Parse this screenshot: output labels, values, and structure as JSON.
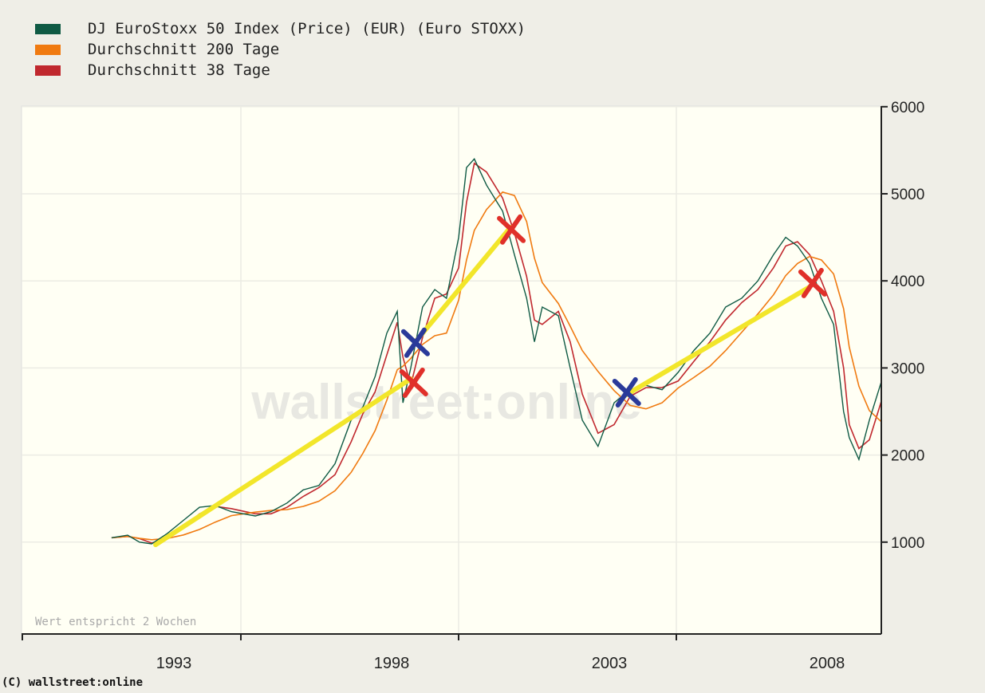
{
  "chart_data": {
    "type": "line",
    "title": "",
    "xlabel": "",
    "ylabel": "",
    "xlim": [
      1991.0,
      2009.25
    ],
    "ylim": [
      0,
      6000
    ],
    "yticks": [
      1000,
      2000,
      3000,
      4000,
      5000,
      6000
    ],
    "xtick_labels": [
      "1993",
      "1998",
      "2003",
      "2008"
    ],
    "xtick_values": [
      1993,
      1998,
      2003,
      2008
    ],
    "grid": true,
    "legend_placement": "top-left",
    "note": "Wert entspricht 2 Wochen",
    "watermark": "wallstreet:online",
    "series": [
      {
        "name": "DJ EuroStoxx 50 Index (Price) (EUR) (Euro STOXX)",
        "color": "#0f5a44",
        "kind": "price",
        "x": [
          1991.57,
          1991.94,
          1992.21,
          1992.49,
          1992.85,
          1993.22,
          1993.59,
          1993.95,
          1994.32,
          1994.87,
          1995.23,
          1995.6,
          1995.97,
          1996.33,
          1996.7,
          1997.07,
          1997.34,
          1997.62,
          1997.89,
          1998.13,
          1998.26,
          1998.44,
          1998.71,
          1998.99,
          1999.26,
          1999.54,
          1999.72,
          1999.9,
          2000.18,
          2000.55,
          2000.82,
          2001.1,
          2001.28,
          2001.46,
          2001.83,
          2002.1,
          2002.38,
          2002.74,
          2003.11,
          2003.48,
          2003.84,
          2004.21,
          2004.58,
          2004.94,
          2005.31,
          2005.67,
          2006.04,
          2006.41,
          2006.77,
          2007.05,
          2007.32,
          2007.6,
          2007.87,
          2008.15,
          2008.38,
          2008.51,
          2008.73,
          2008.97,
          2009.25
        ],
        "y": [
          1050,
          1080,
          1000,
          980,
          1100,
          1250,
          1400,
          1420,
          1350,
          1300,
          1350,
          1450,
          1600,
          1650,
          1900,
          2400,
          2550,
          2900,
          3400,
          3650,
          2600,
          3000,
          3700,
          3900,
          3800,
          4500,
          5300,
          5400,
          5100,
          4800,
          4300,
          3800,
          3300,
          3700,
          3600,
          3000,
          2400,
          2100,
          2600,
          2750,
          2800,
          2750,
          2950,
          3200,
          3400,
          3700,
          3800,
          4000,
          4300,
          4500,
          4400,
          4200,
          3800,
          3500,
          2500,
          2200,
          1950,
          2400,
          2850
        ]
      },
      {
        "name": "Durchschnitt 200 Tage",
        "color": "#f07a10",
        "kind": "moving_average",
        "window_points": 5
      },
      {
        "name": "Durchschnitt 38 Tage",
        "color": "#c0282e",
        "kind": "moving_average",
        "window_points": 2
      }
    ],
    "annotations": {
      "trend_lines": [
        {
          "color": "#f2e62a",
          "from": [
            1992.58,
            970
          ],
          "to": [
            1998.44,
            2875
          ]
        },
        {
          "color": "#f2e62a",
          "from": [
            1998.53,
            3290
          ],
          "to": [
            2000.73,
            4615
          ]
        },
        {
          "color": "#f2e62a",
          "from": [
            2003.38,
            2690
          ],
          "to": [
            2007.6,
            3930
          ]
        }
      ],
      "markers": [
        {
          "type": "buy",
          "color": "#2a3a9a",
          "x": 1998.53,
          "y": 3290
        },
        {
          "type": "sell",
          "color": "#e0302a",
          "x": 1998.49,
          "y": 2830
        },
        {
          "type": "sell",
          "color": "#e0302a",
          "x": 2000.73,
          "y": 4590
        },
        {
          "type": "buy",
          "color": "#2a3a9a",
          "x": 2003.38,
          "y": 2720
        },
        {
          "type": "sell",
          "color": "#e0302a",
          "x": 2007.65,
          "y": 3975
        }
      ]
    }
  },
  "footer": "(C) wallstreet:online"
}
